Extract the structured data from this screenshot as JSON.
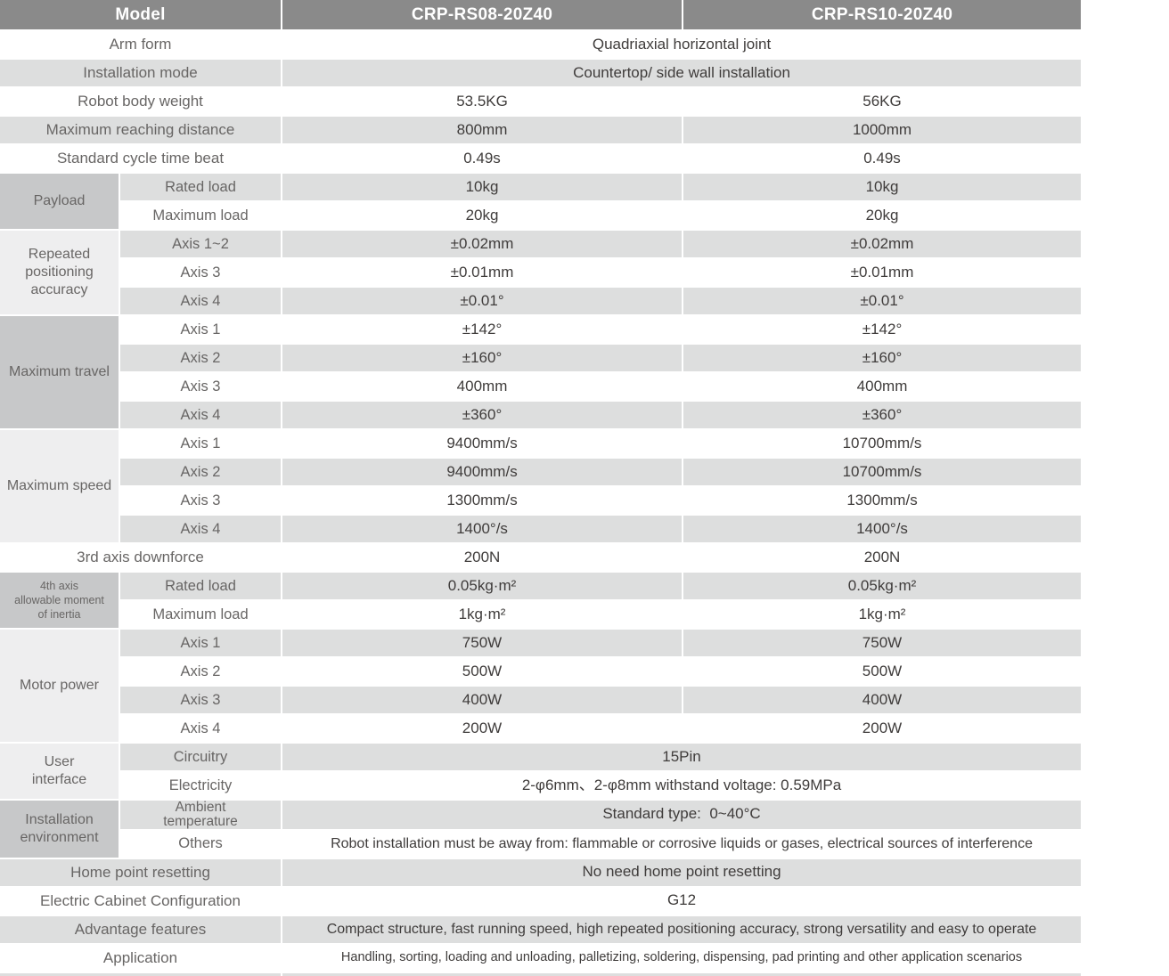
{
  "colors": {
    "header_bg": "#8a8a8a",
    "header_text": "#ffffff",
    "stripe_gray": "#dddede",
    "group_dark": "#c7c8c9",
    "group_light": "#eeeeef",
    "label_text": "#686665",
    "value_text": "#3f3c3b"
  },
  "table": {
    "header": [
      "Model",
      "CRP-RS08-20Z40",
      "CRP-RS10-20Z40"
    ],
    "rows": [
      {
        "label": "Arm form",
        "values": [
          "Quadriaxial horizontal joint"
        ],
        "bg": "w"
      },
      {
        "label": "Installation mode",
        "values": [
          "Countertop/ side wall installation"
        ],
        "bg": "g"
      },
      {
        "label": "Robot body weight",
        "values": [
          "53.5KG",
          "56KG"
        ],
        "bg": "w"
      },
      {
        "label": "Maximum reaching distance",
        "values": [
          "800mm",
          "1000mm"
        ],
        "bg": "g"
      },
      {
        "label": "Standard cycle time beat",
        "values": [
          "0.49s",
          "0.49s"
        ],
        "bg": "w"
      },
      {
        "group": {
          "label": "Payload",
          "span": 2,
          "tone": "dark"
        },
        "label": "Rated load",
        "values": [
          "10kg",
          "10kg"
        ],
        "bg": "g"
      },
      {
        "sub": true,
        "label": "Maximum load",
        "values": [
          "20kg",
          "20kg"
        ],
        "bg": "w"
      },
      {
        "group": {
          "label": "Repeated\npositioning\naccuracy",
          "span": 3,
          "tone": "light"
        },
        "label": "Axis 1~2",
        "values": [
          "±0.02mm",
          "±0.02mm"
        ],
        "bg": "g"
      },
      {
        "sub": true,
        "label": "Axis 3",
        "values": [
          "±0.01mm",
          "±0.01mm"
        ],
        "bg": "w"
      },
      {
        "sub": true,
        "label": "Axis 4",
        "values": [
          "±0.01°",
          "±0.01°"
        ],
        "bg": "g"
      },
      {
        "group": {
          "label": "Maximum travel",
          "span": 4,
          "tone": "dark"
        },
        "label": "Axis 1",
        "values": [
          "±142°",
          "±142°"
        ],
        "bg": "w"
      },
      {
        "sub": true,
        "label": "Axis 2",
        "values": [
          "±160°",
          "±160°"
        ],
        "bg": "g"
      },
      {
        "sub": true,
        "label": "Axis 3",
        "values": [
          "400mm",
          "400mm"
        ],
        "bg": "w"
      },
      {
        "sub": true,
        "label": "Axis 4",
        "values": [
          "±360°",
          "±360°"
        ],
        "bg": "g"
      },
      {
        "group": {
          "label": "Maximum speed",
          "span": 4,
          "tone": "light"
        },
        "label": "Axis 1",
        "values": [
          "9400mm/s",
          "10700mm/s"
        ],
        "bg": "w"
      },
      {
        "sub": true,
        "label": "Axis 2",
        "values": [
          "9400mm/s",
          "10700mm/s"
        ],
        "bg": "g"
      },
      {
        "sub": true,
        "label": "Axis 3",
        "values": [
          "1300mm/s",
          "1300mm/s"
        ],
        "bg": "w"
      },
      {
        "sub": true,
        "label": "Axis 4",
        "values": [
          "1400°/s",
          "1400°/s"
        ],
        "bg": "g"
      },
      {
        "label": "3rd axis downforce",
        "values": [
          "200N",
          "200N"
        ],
        "bg": "w"
      },
      {
        "group": {
          "label": "4th axis\nallowable moment\nof inertia",
          "span": 2,
          "tone": "dark",
          "size": "xs"
        },
        "label": "Rated load",
        "values": [
          "0.05kg·m²",
          "0.05kg·m²"
        ],
        "bg": "g"
      },
      {
        "sub": true,
        "label": "Maximum load",
        "values": [
          "1kg·m²",
          "1kg·m²"
        ],
        "bg": "w"
      },
      {
        "group": {
          "label": "Motor power",
          "span": 4,
          "tone": "light"
        },
        "label": "Axis 1",
        "values": [
          "750W",
          "750W"
        ],
        "bg": "g"
      },
      {
        "sub": true,
        "label": "Axis 2",
        "values": [
          "500W",
          "500W"
        ],
        "bg": "w"
      },
      {
        "sub": true,
        "label": "Axis 3",
        "values": [
          "400W",
          "400W"
        ],
        "bg": "g"
      },
      {
        "sub": true,
        "label": "Axis 4",
        "values": [
          "200W",
          "200W"
        ],
        "bg": "w"
      },
      {
        "group": {
          "label": "User\ninterface",
          "span": 2,
          "tone": "light"
        },
        "label": "Circuitry",
        "values": [
          "15Pin"
        ],
        "bg": "g"
      },
      {
        "sub": true,
        "label": "Electricity",
        "values": [
          "2-φ6mm、2-φ8mm withstand voltage: 0.59MPa"
        ],
        "bg": "w"
      },
      {
        "group": {
          "label": "Installation\nenvironment",
          "span": 2,
          "tone": "dark"
        },
        "label": "Ambient\ntemperature",
        "values": [
          "Standard type:  0~40°C"
        ],
        "bg": "g"
      },
      {
        "sub": true,
        "label": "Others",
        "values": [
          "Robot installation must be away from: flammable or corrosive liquids or gases, electrical sources of interference"
        ],
        "bg": "w",
        "vsize": "sm"
      },
      {
        "label": "Home point resetting",
        "values": [
          "No need home point resetting"
        ],
        "bg": "g"
      },
      {
        "label": "Electric Cabinet Configuration",
        "values": [
          "G12"
        ],
        "bg": "w"
      },
      {
        "label": "Advantage features",
        "values": [
          "Compact structure, fast running speed, high repeated positioning accuracy, strong versatility and easy to operate"
        ],
        "bg": "g",
        "vsize": "sm"
      },
      {
        "label": "Application",
        "values": [
          "Handling, sorting, loading and unloading, palletizing, soldering, dispensing, pad printing and other application scenarios"
        ],
        "bg": "w",
        "vsize": "xs"
      },
      {
        "label": "",
        "values": [
          ""
        ],
        "bg": "g",
        "partial": true
      }
    ]
  }
}
